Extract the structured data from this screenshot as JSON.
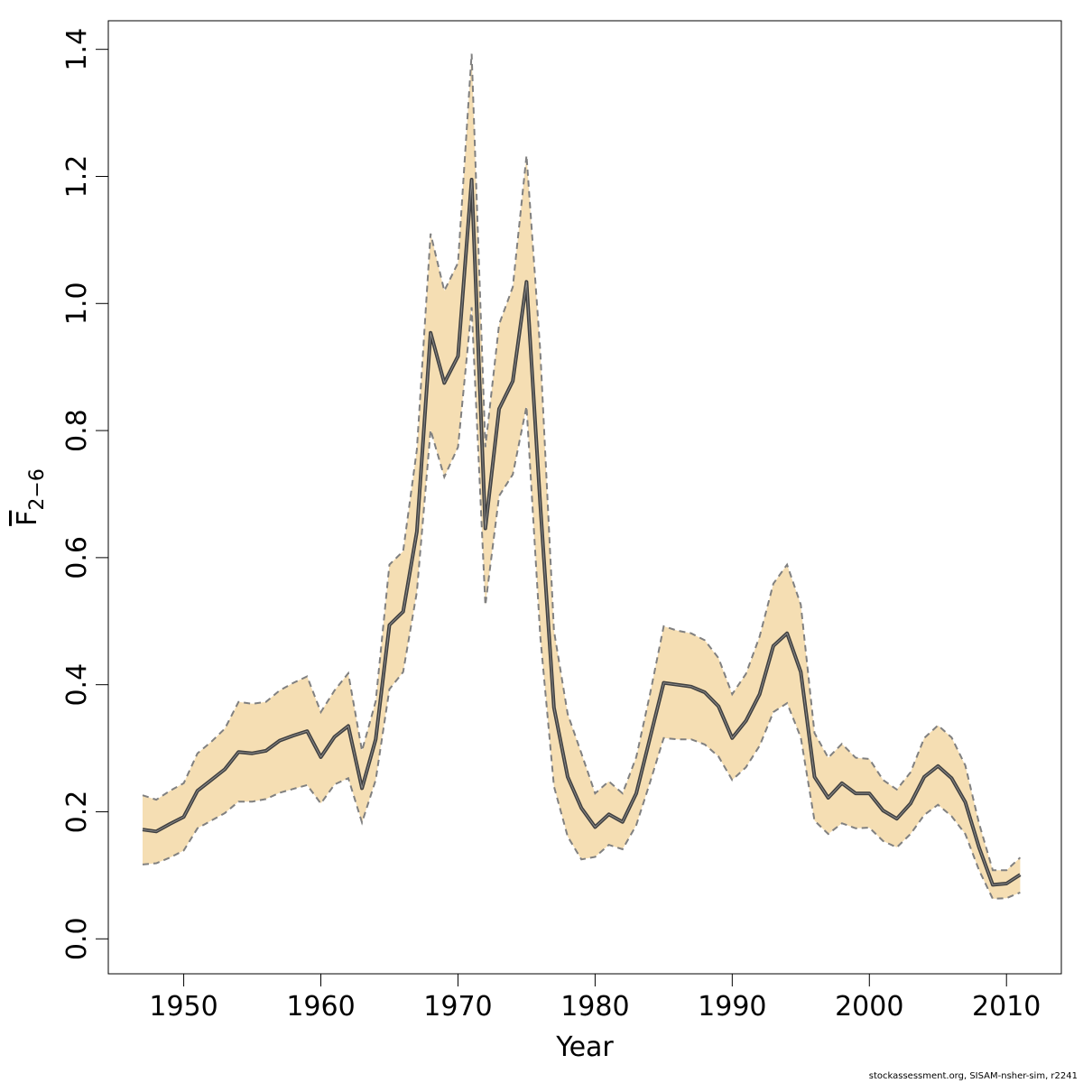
{
  "chart_data": {
    "type": "area",
    "title": "",
    "xlabel": "Year",
    "ylabel_main": "F",
    "ylabel_sub": "2−6",
    "xlim": [
      1944.5,
      2014
    ],
    "ylim": [
      -0.055,
      1.445
    ],
    "xticks": [
      1950,
      1960,
      1970,
      1980,
      1990,
      2000,
      2010
    ],
    "yticks": [
      0.0,
      0.2,
      0.4,
      0.6,
      0.8,
      1.0,
      1.2,
      1.4
    ],
    "ytick_labels": [
      "0.0",
      "0.2",
      "0.4",
      "0.6",
      "0.8",
      "1.0",
      "1.2",
      "1.4"
    ],
    "grid": false,
    "colors": {
      "band": "#f5deb3",
      "band_edge": "#808080",
      "line": "#404040"
    },
    "x": [
      1947,
      1948,
      1949,
      1950,
      1951,
      1952,
      1953,
      1954,
      1955,
      1956,
      1957,
      1958,
      1959,
      1960,
      1961,
      1962,
      1963,
      1964,
      1965,
      1966,
      1967,
      1968,
      1969,
      1970,
      1971,
      1972,
      1973,
      1974,
      1975,
      1976,
      1977,
      1978,
      1979,
      1980,
      1981,
      1982,
      1983,
      1984,
      1985,
      1986,
      1987,
      1988,
      1989,
      1990,
      1991,
      1992,
      1993,
      1994,
      1995,
      1996,
      1997,
      1998,
      1999,
      2000,
      2001,
      2002,
      2003,
      2004,
      2005,
      2006,
      2007,
      2008,
      2009,
      2010,
      2011
    ],
    "series": [
      {
        "role": "estimate",
        "values": [
          0.172,
          0.169,
          0.181,
          0.192,
          0.233,
          0.25,
          0.267,
          0.294,
          0.292,
          0.296,
          0.312,
          0.32,
          0.327,
          0.286,
          0.318,
          0.335,
          0.237,
          0.314,
          0.494,
          0.515,
          0.641,
          0.954,
          0.875,
          0.917,
          1.195,
          0.646,
          0.834,
          0.878,
          1.034,
          0.684,
          0.364,
          0.255,
          0.206,
          0.176,
          0.196,
          0.184,
          0.229,
          0.316,
          0.403,
          0.4,
          0.397,
          0.388,
          0.366,
          0.316,
          0.343,
          0.385,
          0.461,
          0.481,
          0.42,
          0.255,
          0.222,
          0.245,
          0.229,
          0.229,
          0.202,
          0.189,
          0.213,
          0.255,
          0.272,
          0.253,
          0.215,
          0.144,
          0.085,
          0.087,
          0.101
        ]
      },
      {
        "role": "upper",
        "values": [
          0.226,
          0.219,
          0.233,
          0.245,
          0.292,
          0.31,
          0.331,
          0.373,
          0.37,
          0.373,
          0.391,
          0.403,
          0.413,
          0.357,
          0.391,
          0.418,
          0.296,
          0.374,
          0.589,
          0.61,
          0.77,
          1.11,
          1.02,
          1.064,
          1.393,
          0.774,
          0.967,
          1.026,
          1.233,
          0.926,
          0.485,
          0.354,
          0.292,
          0.229,
          0.248,
          0.229,
          0.286,
          0.385,
          0.492,
          0.485,
          0.481,
          0.47,
          0.442,
          0.385,
          0.417,
          0.476,
          0.559,
          0.589,
          0.526,
          0.324,
          0.285,
          0.307,
          0.285,
          0.283,
          0.25,
          0.235,
          0.262,
          0.316,
          0.336,
          0.317,
          0.273,
          0.182,
          0.108,
          0.108,
          0.128
        ]
      },
      {
        "role": "lower",
        "values": [
          0.117,
          0.119,
          0.128,
          0.139,
          0.174,
          0.186,
          0.198,
          0.216,
          0.216,
          0.22,
          0.23,
          0.236,
          0.242,
          0.213,
          0.243,
          0.253,
          0.183,
          0.25,
          0.393,
          0.42,
          0.546,
          0.801,
          0.727,
          0.774,
          0.994,
          0.525,
          0.697,
          0.731,
          0.838,
          0.477,
          0.24,
          0.161,
          0.125,
          0.129,
          0.148,
          0.141,
          0.179,
          0.246,
          0.316,
          0.314,
          0.314,
          0.306,
          0.287,
          0.25,
          0.27,
          0.304,
          0.357,
          0.371,
          0.317,
          0.186,
          0.165,
          0.182,
          0.174,
          0.175,
          0.154,
          0.144,
          0.165,
          0.195,
          0.211,
          0.193,
          0.165,
          0.108,
          0.063,
          0.064,
          0.073
        ]
      }
    ]
  },
  "footer": "stockassessment.org, SISAM-nsher-sim, r2241"
}
